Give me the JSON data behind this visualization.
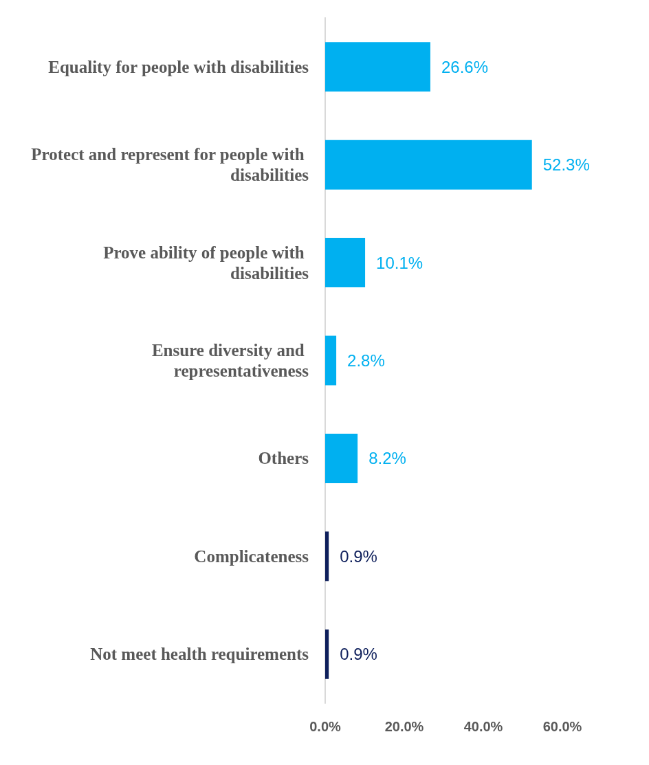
{
  "chart_data": {
    "type": "bar",
    "orientation": "horizontal",
    "categories": [
      "Equality for people with disabilities",
      "Protect and represent for people with disabilities",
      "Prove ability of people with disabilities",
      "Ensure diversity and representativeness",
      "Others",
      "Complicateness",
      "Not meet health requirements"
    ],
    "values": [
      26.6,
      52.3,
      10.1,
      2.8,
      8.2,
      0.9,
      0.9
    ],
    "value_labels": [
      "26.6%",
      "52.3%",
      "10.1%",
      "2.8%",
      "8.2%",
      "0.9%",
      "0.9%"
    ],
    "colors": [
      "#00b0f0",
      "#00b0f0",
      "#00b0f0",
      "#00b0f0",
      "#00b0f0",
      "#0e1f5b",
      "#0e1f5b"
    ],
    "xlim": [
      0,
      60
    ],
    "xticks": [
      {
        "value": 0,
        "label": "0.0%"
      },
      {
        "value": 20,
        "label": "20.0%"
      },
      {
        "value": 40,
        "label": "40.0%"
      },
      {
        "value": 60,
        "label": "60.0%"
      }
    ],
    "grid": false
  }
}
